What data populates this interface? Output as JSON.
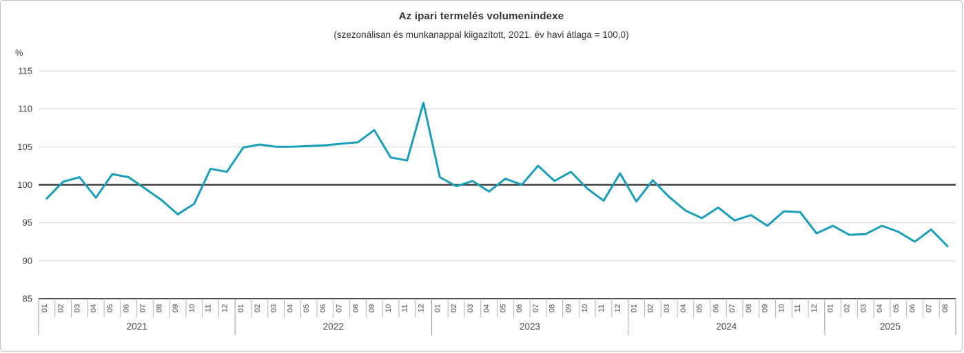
{
  "chart": {
    "title": "Az ipari termelés volumenindexe",
    "subtitle": "(szezonálisan és munkanappal kiigazított, 2021. év havi átlaga = 100,0)",
    "unit_label": "%"
  },
  "chart_data": {
    "type": "line",
    "title": "Az ipari termelés volumenindexe",
    "subtitle": "(szezonálisan és munkanappal kiigazított, 2021. év havi átlaga = 100,0)",
    "ylabel": "%",
    "ylim": [
      85,
      115
    ],
    "yticks": [
      85,
      90,
      95,
      100,
      105,
      110,
      115
    ],
    "baseline": 100,
    "grid": "horizontal",
    "legend": "none",
    "line_color": "#1a9eb8",
    "series_name": "volumenindex",
    "years": [
      {
        "year": "2021",
        "months": [
          "01",
          "02",
          "03",
          "04",
          "05",
          "06",
          "07",
          "08",
          "09",
          "10",
          "11",
          "12"
        ],
        "values": [
          98.2,
          100.4,
          101.0,
          98.3,
          101.4,
          101.0,
          99.5,
          98.0,
          96.1,
          97.5,
          102.1,
          101.7
        ]
      },
      {
        "year": "2022",
        "months": [
          "01",
          "02",
          "03",
          "04",
          "05",
          "06",
          "07",
          "08",
          "09",
          "10",
          "11",
          "12"
        ],
        "values": [
          104.9,
          105.3,
          105.0,
          105.0,
          105.1,
          105.2,
          105.4,
          105.6,
          107.2,
          103.6,
          103.2,
          110.8
        ]
      },
      {
        "year": "2023",
        "months": [
          "01",
          "02",
          "03",
          "04",
          "05",
          "06",
          "07",
          "08",
          "09",
          "10",
          "11",
          "12"
        ],
        "values": [
          101.0,
          99.8,
          100.5,
          99.1,
          100.8,
          100.0,
          102.5,
          100.5,
          101.7,
          99.5,
          97.9,
          101.5
        ]
      },
      {
        "year": "2024",
        "months": [
          "01",
          "02",
          "03",
          "04",
          "05",
          "06",
          "07",
          "08",
          "09",
          "10",
          "11",
          "12"
        ],
        "values": [
          97.8,
          100.6,
          98.4,
          96.6,
          95.6,
          97.0,
          95.3,
          96.0,
          94.6,
          96.5,
          96.4,
          93.6
        ]
      },
      {
        "year": "2025",
        "months": [
          "01",
          "02",
          "03",
          "04",
          "05",
          "06",
          "07",
          "08"
        ],
        "values": [
          94.6,
          93.4,
          93.5,
          94.6,
          93.8,
          92.5,
          94.1,
          91.9
        ]
      }
    ]
  }
}
